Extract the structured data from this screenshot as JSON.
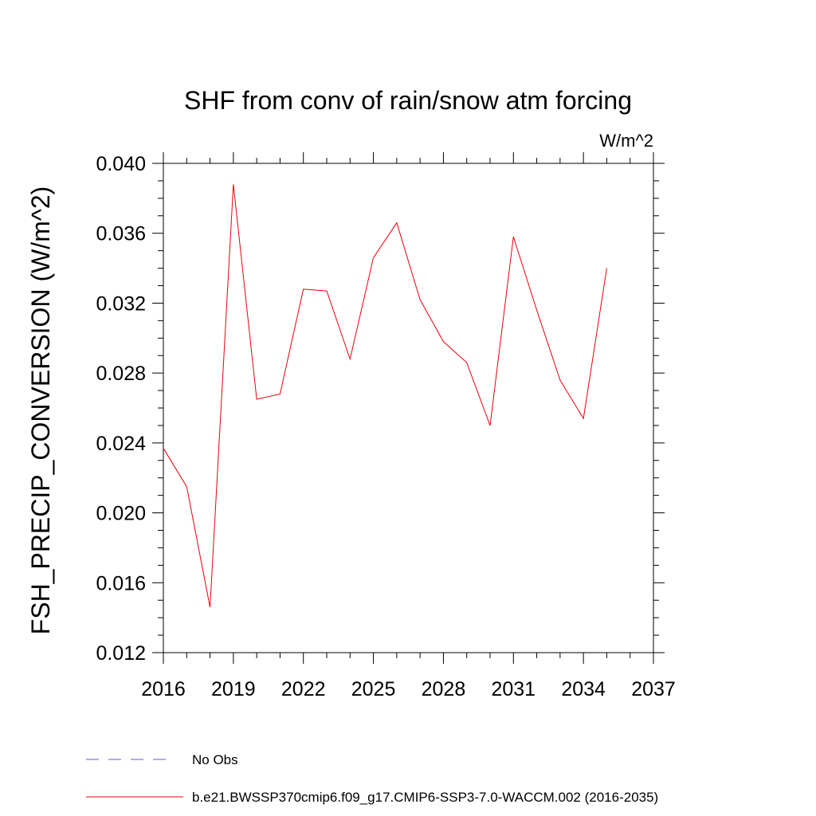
{
  "chart_data": {
    "type": "line",
    "title": "SHF from conv of rain/snow atm forcing",
    "units": "W/m^2",
    "ylabel": "FSH_PRECIP_CONVERSION  (W/m^2)",
    "xlabel": "",
    "xlim": [
      2016,
      2037
    ],
    "ylim": [
      0.012,
      0.04
    ],
    "xticks": [
      2016,
      2019,
      2022,
      2025,
      2028,
      2031,
      2034,
      2037
    ],
    "xtick_labels": [
      "2016",
      "2019",
      "2022",
      "2025",
      "2028",
      "2031",
      "2034",
      "2037"
    ],
    "yticks": [
      0.012,
      0.016,
      0.02,
      0.024,
      0.028,
      0.032,
      0.036,
      0.04
    ],
    "ytick_labels": [
      "0.012",
      "0.016",
      "0.020",
      "0.024",
      "0.028",
      "0.032",
      "0.036",
      "0.040"
    ],
    "grid": false,
    "legend_position": "bottom",
    "series": [
      {
        "name": "b.e21.BWSSP370cmip6.f09_g17.CMIP6-SSP3-7.0-WACCM.002 (2016-2035)",
        "color": "#e8000b",
        "style": "solid",
        "x": [
          2016,
          2017,
          2018,
          2019,
          2020,
          2021,
          2022,
          2023,
          2024,
          2025,
          2026,
          2027,
          2028,
          2029,
          2030,
          2031,
          2032,
          2033,
          2034,
          2035
        ],
        "y": [
          0.0237,
          0.0215,
          0.0146,
          0.0388,
          0.0265,
          0.0268,
          0.0328,
          0.0327,
          0.0288,
          0.0346,
          0.0366,
          0.0322,
          0.0298,
          0.0286,
          0.025,
          0.0358,
          0.0316,
          0.0276,
          0.0254,
          0.034
        ]
      }
    ],
    "legend": [
      {
        "label": "No Obs",
        "color": "#6a5acd",
        "style": "dashed"
      },
      {
        "label": "b.e21.BWSSP370cmip6.f09_g17.CMIP6-SSP3-7.0-WACCM.002 (2016-2035)",
        "color": "#e8000b",
        "style": "solid"
      }
    ]
  }
}
